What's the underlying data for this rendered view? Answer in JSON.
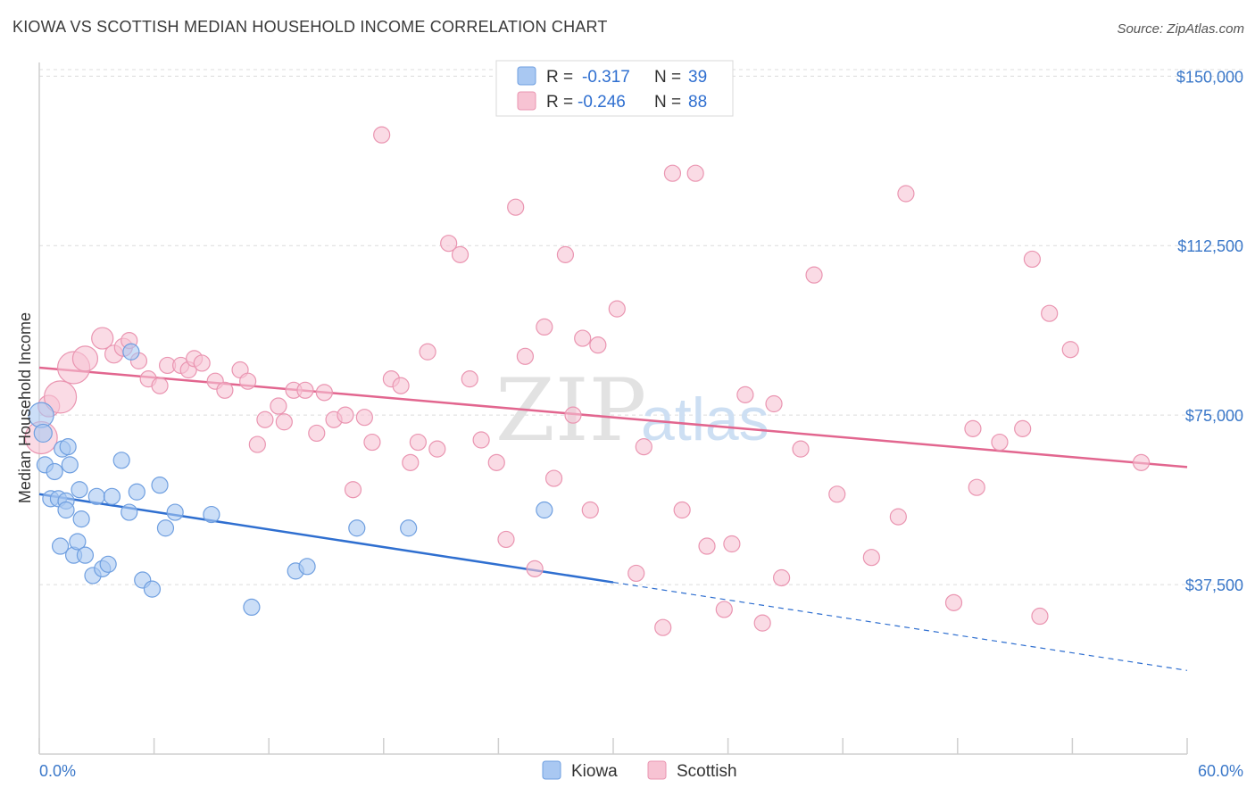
{
  "title": "KIOWA VS SCOTTISH MEDIAN HOUSEHOLD INCOME CORRELATION CHART",
  "source": "Source: ZipAtlas.com",
  "watermark": {
    "zip": "ZIP",
    "atlas": "atlas"
  },
  "colors": {
    "kiowa_fill": "#a9c8f2",
    "kiowa_stroke": "#6f9fe0",
    "kiowa_line": "#2f6fd0",
    "scottish_fill": "#f7c3d3",
    "scottish_stroke": "#ea95b1",
    "scottish_line": "#e2668f",
    "grid": "#dcdcdc",
    "tick_text": "#3b78c9"
  },
  "legend": {
    "rows": [
      {
        "r_label": "R =",
        "r_value": "-0.317",
        "n_label": "N =",
        "n_value": "39"
      },
      {
        "r_label": "R =",
        "r_value": "-0.246",
        "n_label": "N =",
        "n_value": "88"
      }
    ]
  },
  "chart_data": {
    "type": "scatter",
    "title": "KIOWA VS SCOTTISH MEDIAN HOUSEHOLD INCOME CORRELATION CHART",
    "xlabel": "",
    "ylabel": "Median Household Income",
    "xlim": [
      0,
      60
    ],
    "ylim": [
      0,
      155000
    ],
    "x_tick_labels": [
      "0.0%",
      "60.0%"
    ],
    "y_ticks": [
      37500,
      75000,
      112500,
      150000
    ],
    "y_tick_labels": [
      "$37,500",
      "$75,000",
      "$112,500",
      "$150,000"
    ],
    "grid": true,
    "legend_position": "top-center",
    "series": [
      {
        "name": "Kiowa",
        "r": -0.317,
        "n": 39,
        "trend": {
          "x0": 0,
          "y0": 57500,
          "x1": 30,
          "y1": 38000,
          "dashed_to_x": 60,
          "dashed_to_y": 18500
        },
        "points": [
          {
            "x": 0.1,
            "y": 75000,
            "s": 14
          },
          {
            "x": 0.2,
            "y": 71000,
            "s": 10
          },
          {
            "x": 0.3,
            "y": 64000,
            "s": 9
          },
          {
            "x": 0.6,
            "y": 56500,
            "s": 9
          },
          {
            "x": 0.8,
            "y": 62500,
            "s": 9
          },
          {
            "x": 1.0,
            "y": 56500,
            "s": 9
          },
          {
            "x": 1.1,
            "y": 46000,
            "s": 9
          },
          {
            "x": 1.2,
            "y": 67500,
            "s": 9
          },
          {
            "x": 1.4,
            "y": 56000,
            "s": 9
          },
          {
            "x": 1.4,
            "y": 54000,
            "s": 9
          },
          {
            "x": 1.5,
            "y": 68000,
            "s": 9
          },
          {
            "x": 1.6,
            "y": 64000,
            "s": 9
          },
          {
            "x": 1.8,
            "y": 44000,
            "s": 9
          },
          {
            "x": 2.0,
            "y": 47000,
            "s": 9
          },
          {
            "x": 2.1,
            "y": 58500,
            "s": 9
          },
          {
            "x": 2.2,
            "y": 52000,
            "s": 9
          },
          {
            "x": 2.4,
            "y": 44000,
            "s": 9
          },
          {
            "x": 2.8,
            "y": 39500,
            "s": 9
          },
          {
            "x": 3.0,
            "y": 57000,
            "s": 9
          },
          {
            "x": 3.3,
            "y": 41000,
            "s": 9
          },
          {
            "x": 3.6,
            "y": 42000,
            "s": 9
          },
          {
            "x": 3.8,
            "y": 57000,
            "s": 9
          },
          {
            "x": 4.3,
            "y": 65000,
            "s": 9
          },
          {
            "x": 4.7,
            "y": 53500,
            "s": 9
          },
          {
            "x": 4.8,
            "y": 89000,
            "s": 9
          },
          {
            "x": 5.1,
            "y": 58000,
            "s": 9
          },
          {
            "x": 5.4,
            "y": 38500,
            "s": 9
          },
          {
            "x": 5.9,
            "y": 36500,
            "s": 9
          },
          {
            "x": 6.3,
            "y": 59500,
            "s": 9
          },
          {
            "x": 6.6,
            "y": 50000,
            "s": 9
          },
          {
            "x": 7.1,
            "y": 53500,
            "s": 9
          },
          {
            "x": 9.0,
            "y": 53000,
            "s": 9
          },
          {
            "x": 11.1,
            "y": 32500,
            "s": 9
          },
          {
            "x": 13.4,
            "y": 40500,
            "s": 9
          },
          {
            "x": 14.0,
            "y": 41500,
            "s": 9
          },
          {
            "x": 16.6,
            "y": 50000,
            "s": 9
          },
          {
            "x": 19.3,
            "y": 50000,
            "s": 9
          },
          {
            "x": 26.4,
            "y": 54000,
            "s": 9
          }
        ]
      },
      {
        "name": "Scottish",
        "r": -0.246,
        "n": 88,
        "trend": {
          "x0": 0,
          "y0": 85500,
          "x1": 60,
          "y1": 63500
        },
        "points": [
          {
            "x": 0.1,
            "y": 70000,
            "s": 18
          },
          {
            "x": 0.5,
            "y": 77000,
            "s": 12
          },
          {
            "x": 1.1,
            "y": 79000,
            "s": 18
          },
          {
            "x": 1.8,
            "y": 85500,
            "s": 18
          },
          {
            "x": 2.4,
            "y": 87500,
            "s": 14
          },
          {
            "x": 3.3,
            "y": 92000,
            "s": 12
          },
          {
            "x": 3.9,
            "y": 88500,
            "s": 10
          },
          {
            "x": 4.4,
            "y": 90000,
            "s": 10
          },
          {
            "x": 4.7,
            "y": 91500,
            "s": 9
          },
          {
            "x": 5.2,
            "y": 87000,
            "s": 9
          },
          {
            "x": 5.7,
            "y": 83000,
            "s": 9
          },
          {
            "x": 6.3,
            "y": 81500,
            "s": 9
          },
          {
            "x": 6.7,
            "y": 86000,
            "s": 9
          },
          {
            "x": 7.4,
            "y": 86000,
            "s": 9
          },
          {
            "x": 7.8,
            "y": 85000,
            "s": 9
          },
          {
            "x": 8.1,
            "y": 87500,
            "s": 9
          },
          {
            "x": 8.5,
            "y": 86500,
            "s": 9
          },
          {
            "x": 9.2,
            "y": 82500,
            "s": 9
          },
          {
            "x": 9.7,
            "y": 80500,
            "s": 9
          },
          {
            "x": 10.5,
            "y": 85000,
            "s": 9
          },
          {
            "x": 10.9,
            "y": 82500,
            "s": 9
          },
          {
            "x": 11.4,
            "y": 68500,
            "s": 9
          },
          {
            "x": 11.8,
            "y": 74000,
            "s": 9
          },
          {
            "x": 12.5,
            "y": 77000,
            "s": 9
          },
          {
            "x": 12.8,
            "y": 73500,
            "s": 9
          },
          {
            "x": 13.3,
            "y": 80500,
            "s": 9
          },
          {
            "x": 13.9,
            "y": 80500,
            "s": 9
          },
          {
            "x": 14.5,
            "y": 71000,
            "s": 9
          },
          {
            "x": 14.9,
            "y": 80000,
            "s": 9
          },
          {
            "x": 15.4,
            "y": 74000,
            "s": 9
          },
          {
            "x": 16.0,
            "y": 75000,
            "s": 9
          },
          {
            "x": 16.4,
            "y": 58500,
            "s": 9
          },
          {
            "x": 17.0,
            "y": 74500,
            "s": 9
          },
          {
            "x": 17.4,
            "y": 69000,
            "s": 9
          },
          {
            "x": 17.9,
            "y": 137000,
            "s": 9
          },
          {
            "x": 18.4,
            "y": 83000,
            "s": 9
          },
          {
            "x": 18.9,
            "y": 81500,
            "s": 9
          },
          {
            "x": 19.4,
            "y": 64500,
            "s": 9
          },
          {
            "x": 19.8,
            "y": 69000,
            "s": 9
          },
          {
            "x": 20.3,
            "y": 89000,
            "s": 9
          },
          {
            "x": 20.8,
            "y": 67500,
            "s": 9
          },
          {
            "x": 21.4,
            "y": 113000,
            "s": 9
          },
          {
            "x": 22.0,
            "y": 110500,
            "s": 9
          },
          {
            "x": 22.5,
            "y": 83000,
            "s": 9
          },
          {
            "x": 23.1,
            "y": 69500,
            "s": 9
          },
          {
            "x": 23.9,
            "y": 64500,
            "s": 9
          },
          {
            "x": 24.4,
            "y": 47500,
            "s": 9
          },
          {
            "x": 24.9,
            "y": 121000,
            "s": 9
          },
          {
            "x": 25.4,
            "y": 88000,
            "s": 9
          },
          {
            "x": 25.9,
            "y": 41000,
            "s": 9
          },
          {
            "x": 26.4,
            "y": 94500,
            "s": 9
          },
          {
            "x": 26.9,
            "y": 61000,
            "s": 9
          },
          {
            "x": 27.5,
            "y": 110500,
            "s": 9
          },
          {
            "x": 27.9,
            "y": 75000,
            "s": 9
          },
          {
            "x": 28.4,
            "y": 92000,
            "s": 9
          },
          {
            "x": 28.8,
            "y": 54000,
            "s": 9
          },
          {
            "x": 29.2,
            "y": 90500,
            "s": 9
          },
          {
            "x": 30.2,
            "y": 98500,
            "s": 9
          },
          {
            "x": 31.2,
            "y": 40000,
            "s": 9
          },
          {
            "x": 31.6,
            "y": 68000,
            "s": 9
          },
          {
            "x": 32.6,
            "y": 28000,
            "s": 9
          },
          {
            "x": 33.1,
            "y": 128500,
            "s": 9
          },
          {
            "x": 33.6,
            "y": 54000,
            "s": 9
          },
          {
            "x": 34.3,
            "y": 128500,
            "s": 9
          },
          {
            "x": 34.9,
            "y": 46000,
            "s": 9
          },
          {
            "x": 35.8,
            "y": 32000,
            "s": 9
          },
          {
            "x": 36.2,
            "y": 46500,
            "s": 9
          },
          {
            "x": 36.9,
            "y": 79500,
            "s": 9
          },
          {
            "x": 37.8,
            "y": 29000,
            "s": 9
          },
          {
            "x": 38.4,
            "y": 77500,
            "s": 9
          },
          {
            "x": 38.8,
            "y": 39000,
            "s": 9
          },
          {
            "x": 39.8,
            "y": 67500,
            "s": 9
          },
          {
            "x": 40.5,
            "y": 106000,
            "s": 9
          },
          {
            "x": 41.7,
            "y": 57500,
            "s": 9
          },
          {
            "x": 43.5,
            "y": 43500,
            "s": 9
          },
          {
            "x": 44.9,
            "y": 52500,
            "s": 9
          },
          {
            "x": 45.3,
            "y": 124000,
            "s": 9
          },
          {
            "x": 47.8,
            "y": 33500,
            "s": 9
          },
          {
            "x": 48.8,
            "y": 72000,
            "s": 9
          },
          {
            "x": 49.0,
            "y": 59000,
            "s": 9
          },
          {
            "x": 50.2,
            "y": 69000,
            "s": 9
          },
          {
            "x": 51.4,
            "y": 72000,
            "s": 9
          },
          {
            "x": 51.9,
            "y": 109500,
            "s": 9
          },
          {
            "x": 52.3,
            "y": 30500,
            "s": 9
          },
          {
            "x": 52.8,
            "y": 97500,
            "s": 9
          },
          {
            "x": 53.9,
            "y": 89500,
            "s": 9
          },
          {
            "x": 57.6,
            "y": 64500,
            "s": 9
          }
        ]
      }
    ]
  }
}
